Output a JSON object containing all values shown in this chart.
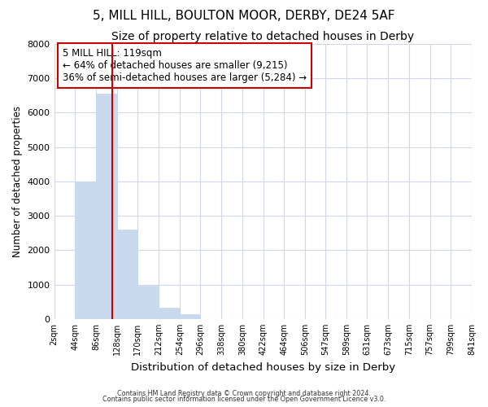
{
  "title": "5, MILL HILL, BOULTON MOOR, DERBY, DE24 5AF",
  "subtitle": "Size of property relative to detached houses in Derby",
  "xlabel": "Distribution of detached houses by size in Derby",
  "ylabel": "Number of detached properties",
  "bar_edges": [
    2,
    44,
    86,
    128,
    170,
    212,
    254,
    296,
    338,
    380,
    422,
    464,
    506,
    547,
    589,
    631,
    673,
    715,
    757,
    799,
    841
  ],
  "bar_heights": [
    0,
    4000,
    6550,
    2600,
    960,
    320,
    130,
    0,
    0,
    0,
    0,
    0,
    0,
    0,
    0,
    0,
    0,
    0,
    0,
    0
  ],
  "bar_color": "#c8d9ee",
  "bar_edgecolor": "#c8d9ee",
  "vline_x": 119,
  "vline_color": "#cc0000",
  "ylim": [
    0,
    8000
  ],
  "yticks": [
    0,
    1000,
    2000,
    3000,
    4000,
    5000,
    6000,
    7000,
    8000
  ],
  "annotation_text": "5 MILL HILL: 119sqm\n← 64% of detached houses are smaller (9,215)\n36% of semi-detached houses are larger (5,284) →",
  "annotation_box_edgecolor": "#cc0000",
  "footnote1": "Contains HM Land Registry data © Crown copyright and database right 2024.",
  "footnote2": "Contains public sector information licensed under the Open Government Licence v3.0.",
  "tick_labels": [
    "2sqm",
    "44sqm",
    "86sqm",
    "128sqm",
    "170sqm",
    "212sqm",
    "254sqm",
    "296sqm",
    "338sqm",
    "380sqm",
    "422sqm",
    "464sqm",
    "506sqm",
    "547sqm",
    "589sqm",
    "631sqm",
    "673sqm",
    "715sqm",
    "757sqm",
    "799sqm",
    "841sqm"
  ],
  "bg_color": "#ffffff",
  "plot_bg_color": "#ffffff",
  "grid_color": "#d0d8e8",
  "title_fontsize": 11,
  "subtitle_fontsize": 10
}
